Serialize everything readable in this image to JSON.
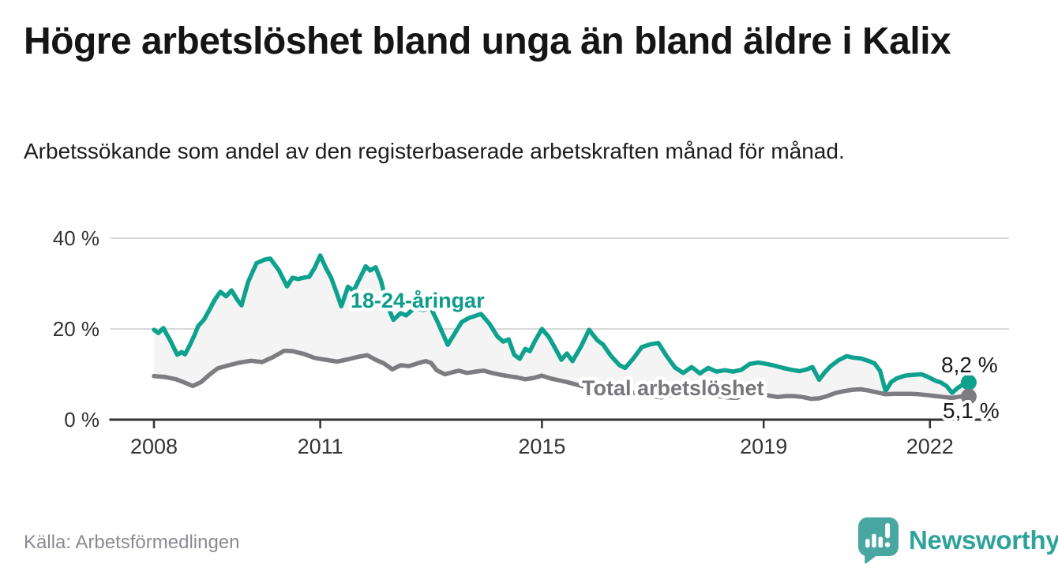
{
  "header": {
    "title": "Högre arbetslöshet bland unga än bland äldre i Kalix",
    "subtitle": "Arbetssökande som andel av den registerbaserade arbetskraften månad för månad."
  },
  "footer": {
    "source": "Källa: Arbetsförmedlingen",
    "brand": "Newsworthy"
  },
  "colors": {
    "youth_line": "#0EA18E",
    "youth_label": "#0D9C8A",
    "total_line": "#7C7C81",
    "total_label": "#76767C",
    "band_fill": "#f4f4f4",
    "grid": "#d8d8d8",
    "axis": "#333333",
    "tick_text": "#333333",
    "value_text": "#1a1a1a",
    "source_text": "#8a8a92",
    "logo_bubble": "#48A7A0",
    "wordmark": "#2FA39A",
    "background": "#ffffff"
  },
  "chart_data": {
    "type": "line",
    "title": "Högre arbetslöshet bland unga än bland äldre i Kalix",
    "subtitle": "Arbetssökande som andel av den registerbaserade arbetskraften månad för månad.",
    "unit": "%",
    "x_domain": [
      2008,
      2022.75
    ],
    "ylim": [
      0,
      42
    ],
    "grid": "horizontal-only",
    "legend": "inline-labels",
    "x_axis": {
      "ticks": [
        {
          "value": 2008,
          "label": "2008"
        },
        {
          "value": 2011,
          "label": "2011"
        },
        {
          "value": 2015,
          "label": "2015"
        },
        {
          "value": 2019,
          "label": "2019"
        },
        {
          "value": 2022,
          "label": "2022"
        }
      ]
    },
    "y_axis": {
      "ticks": [
        {
          "value": 0,
          "label": "0 %"
        },
        {
          "value": 20,
          "label": "20 %"
        },
        {
          "value": 40,
          "label": "40 %"
        }
      ]
    },
    "band_fill_between_series": true,
    "series": [
      {
        "name": "18-24-åringar",
        "label_annotation": "18-24-åringar",
        "end_annotation": "8,2 %",
        "last_value": 8.2,
        "points": [
          [
            2008,
            19.8
          ],
          [
            2008.08,
            19.1
          ],
          [
            2008.17,
            20.2
          ],
          [
            2008.3,
            17.3
          ],
          [
            2008.42,
            14.3
          ],
          [
            2008.5,
            14.9
          ],
          [
            2008.56,
            14.4
          ],
          [
            2008.65,
            16.5
          ],
          [
            2008.73,
            18.6
          ],
          [
            2008.8,
            20.7
          ],
          [
            2008.9,
            22
          ],
          [
            2009,
            24.2
          ],
          [
            2009.1,
            26.5
          ],
          [
            2009.2,
            28.2
          ],
          [
            2009.3,
            27.2
          ],
          [
            2009.4,
            28.5
          ],
          [
            2009.5,
            26.5
          ],
          [
            2009.58,
            25.2
          ],
          [
            2009.7,
            30.4
          ],
          [
            2009.85,
            34.5
          ],
          [
            2010,
            35.3
          ],
          [
            2010.1,
            35.5
          ],
          [
            2010.25,
            33
          ],
          [
            2010.4,
            29.4
          ],
          [
            2010.5,
            31.3
          ],
          [
            2010.6,
            31
          ],
          [
            2010.7,
            31.3
          ],
          [
            2010.8,
            31.5
          ],
          [
            2010.9,
            33.5
          ],
          [
            2011,
            36.2
          ],
          [
            2011.1,
            33.5
          ],
          [
            2011.2,
            31.2
          ],
          [
            2011.3,
            27.8
          ],
          [
            2011.38,
            25
          ],
          [
            2011.5,
            29.3
          ],
          [
            2011.6,
            28.4
          ],
          [
            2011.7,
            30.8
          ],
          [
            2011.82,
            33.8
          ],
          [
            2011.9,
            32.9
          ],
          [
            2012,
            33.6
          ],
          [
            2012.1,
            30.5
          ],
          [
            2012.2,
            25.5
          ],
          [
            2012.32,
            22
          ],
          [
            2012.45,
            23.5
          ],
          [
            2012.55,
            23
          ],
          [
            2012.7,
            24.6
          ],
          [
            2012.85,
            24.2
          ],
          [
            2013,
            24.5
          ],
          [
            2013.12,
            21.5
          ],
          [
            2013.3,
            16.5
          ],
          [
            2013.45,
            19.5
          ],
          [
            2013.55,
            21.5
          ],
          [
            2013.68,
            22.4
          ],
          [
            2013.8,
            22.9
          ],
          [
            2013.9,
            23.3
          ],
          [
            2014.05,
            21.2
          ],
          [
            2014.2,
            18.3
          ],
          [
            2014.3,
            17.2
          ],
          [
            2014.4,
            17.7
          ],
          [
            2014.5,
            14.3
          ],
          [
            2014.6,
            13.4
          ],
          [
            2014.7,
            15.6
          ],
          [
            2014.78,
            15.1
          ],
          [
            2014.88,
            17.5
          ],
          [
            2015,
            20
          ],
          [
            2015.12,
            18.3
          ],
          [
            2015.25,
            15.5
          ],
          [
            2015.35,
            13.2
          ],
          [
            2015.45,
            14.6
          ],
          [
            2015.55,
            12.9
          ],
          [
            2015.7,
            16
          ],
          [
            2015.85,
            19.8
          ],
          [
            2016,
            17.5
          ],
          [
            2016.1,
            16.6
          ],
          [
            2016.25,
            14
          ],
          [
            2016.4,
            12
          ],
          [
            2016.5,
            11.4
          ],
          [
            2016.65,
            13.5
          ],
          [
            2016.8,
            16
          ],
          [
            2016.95,
            16.6
          ],
          [
            2017.1,
            16.9
          ],
          [
            2017.25,
            14
          ],
          [
            2017.4,
            11.5
          ],
          [
            2017.55,
            10.3
          ],
          [
            2017.7,
            11.6
          ],
          [
            2017.85,
            10.2
          ],
          [
            2018,
            11.4
          ],
          [
            2018.15,
            10.6
          ],
          [
            2018.3,
            10.9
          ],
          [
            2018.45,
            10.6
          ],
          [
            2018.6,
            11
          ],
          [
            2018.75,
            12.3
          ],
          [
            2018.9,
            12.6
          ],
          [
            2019.05,
            12.3
          ],
          [
            2019.2,
            11.9
          ],
          [
            2019.35,
            11.4
          ],
          [
            2019.5,
            11
          ],
          [
            2019.65,
            10.7
          ],
          [
            2019.78,
            11.1
          ],
          [
            2019.88,
            11.6
          ],
          [
            2020,
            8.8
          ],
          [
            2020.1,
            10.4
          ],
          [
            2020.2,
            11.7
          ],
          [
            2020.35,
            13.1
          ],
          [
            2020.5,
            14
          ],
          [
            2020.6,
            13.7
          ],
          [
            2020.75,
            13.5
          ],
          [
            2020.9,
            12.9
          ],
          [
            2021,
            12.4
          ],
          [
            2021.1,
            10.8
          ],
          [
            2021.2,
            6.3
          ],
          [
            2021.3,
            8.3
          ],
          [
            2021.4,
            9.1
          ],
          [
            2021.55,
            9.7
          ],
          [
            2021.7,
            9.9
          ],
          [
            2021.85,
            10
          ],
          [
            2021.95,
            9.5
          ],
          [
            2022.1,
            8.6
          ],
          [
            2022.2,
            8.2
          ],
          [
            2022.3,
            7.4
          ],
          [
            2022.4,
            5.9
          ],
          [
            2022.5,
            7
          ],
          [
            2022.6,
            7.8
          ],
          [
            2022.7,
            8.2
          ]
        ]
      },
      {
        "name": "Total arbetslöshet",
        "label_annotation": "Total arbetslöshet",
        "end_annotation": "5,1 %",
        "last_value": 5.1,
        "points": [
          [
            2008,
            9.6
          ],
          [
            2008.2,
            9.4
          ],
          [
            2008.4,
            8.9
          ],
          [
            2008.55,
            8.2
          ],
          [
            2008.7,
            7.4
          ],
          [
            2008.85,
            8.3
          ],
          [
            2009,
            9.9
          ],
          [
            2009.15,
            11.3
          ],
          [
            2009.35,
            12
          ],
          [
            2009.55,
            12.6
          ],
          [
            2009.75,
            13
          ],
          [
            2009.95,
            12.7
          ],
          [
            2010.15,
            13.8
          ],
          [
            2010.35,
            15.2
          ],
          [
            2010.5,
            15.1
          ],
          [
            2010.7,
            14.5
          ],
          [
            2010.9,
            13.6
          ],
          [
            2011.1,
            13.2
          ],
          [
            2011.3,
            12.8
          ],
          [
            2011.5,
            13.3
          ],
          [
            2011.7,
            13.9
          ],
          [
            2011.85,
            14.2
          ],
          [
            2012,
            13.2
          ],
          [
            2012.15,
            12.4
          ],
          [
            2012.3,
            11.1
          ],
          [
            2012.45,
            12
          ],
          [
            2012.6,
            11.8
          ],
          [
            2012.75,
            12.4
          ],
          [
            2012.9,
            12.9
          ],
          [
            2013,
            12.5
          ],
          [
            2013.1,
            10.9
          ],
          [
            2013.25,
            10
          ],
          [
            2013.4,
            10.5
          ],
          [
            2013.5,
            10.8
          ],
          [
            2013.65,
            10.3
          ],
          [
            2013.8,
            10.6
          ],
          [
            2013.95,
            10.8
          ],
          [
            2014.1,
            10.3
          ],
          [
            2014.25,
            9.9
          ],
          [
            2014.4,
            9.6
          ],
          [
            2014.55,
            9.3
          ],
          [
            2014.7,
            8.9
          ],
          [
            2014.85,
            9.2
          ],
          [
            2015,
            9.7
          ],
          [
            2015.15,
            9.1
          ],
          [
            2015.3,
            8.7
          ],
          [
            2015.45,
            8.3
          ],
          [
            2015.6,
            7.8
          ],
          [
            2015.75,
            7.3
          ],
          [
            2015.9,
            7.5
          ],
          [
            2016.05,
            7.6
          ],
          [
            2016.2,
            7
          ],
          [
            2016.35,
            6.6
          ],
          [
            2016.5,
            6.2
          ],
          [
            2016.65,
            5.9
          ],
          [
            2016.8,
            5.6
          ],
          [
            2017,
            5.2
          ],
          [
            2017.15,
            4.9
          ],
          [
            2017.3,
            5.3
          ],
          [
            2017.45,
            5.6
          ],
          [
            2017.6,
            5.6
          ],
          [
            2017.75,
            5.4
          ],
          [
            2017.9,
            5.1
          ],
          [
            2018.05,
            5.5
          ],
          [
            2018.2,
            5.2
          ],
          [
            2018.35,
            4.9
          ],
          [
            2018.5,
            4.8
          ],
          [
            2018.65,
            5.2
          ],
          [
            2018.8,
            5.5
          ],
          [
            2018.95,
            5.7
          ],
          [
            2019.1,
            5.3
          ],
          [
            2019.25,
            5
          ],
          [
            2019.4,
            5.2
          ],
          [
            2019.55,
            5.2
          ],
          [
            2019.7,
            5
          ],
          [
            2019.85,
            4.6
          ],
          [
            2020,
            4.7
          ],
          [
            2020.15,
            5.2
          ],
          [
            2020.3,
            5.9
          ],
          [
            2020.45,
            6.3
          ],
          [
            2020.6,
            6.6
          ],
          [
            2020.75,
            6.7
          ],
          [
            2020.9,
            6.4
          ],
          [
            2021.05,
            6
          ],
          [
            2021.2,
            5.6
          ],
          [
            2021.35,
            5.7
          ],
          [
            2021.5,
            5.7
          ],
          [
            2021.65,
            5.7
          ],
          [
            2021.8,
            5.6
          ],
          [
            2021.95,
            5.4
          ],
          [
            2022.1,
            5.2
          ],
          [
            2022.25,
            5
          ],
          [
            2022.4,
            4.8
          ],
          [
            2022.5,
            5
          ],
          [
            2022.6,
            5.2
          ],
          [
            2022.7,
            5.1
          ]
        ]
      }
    ]
  }
}
